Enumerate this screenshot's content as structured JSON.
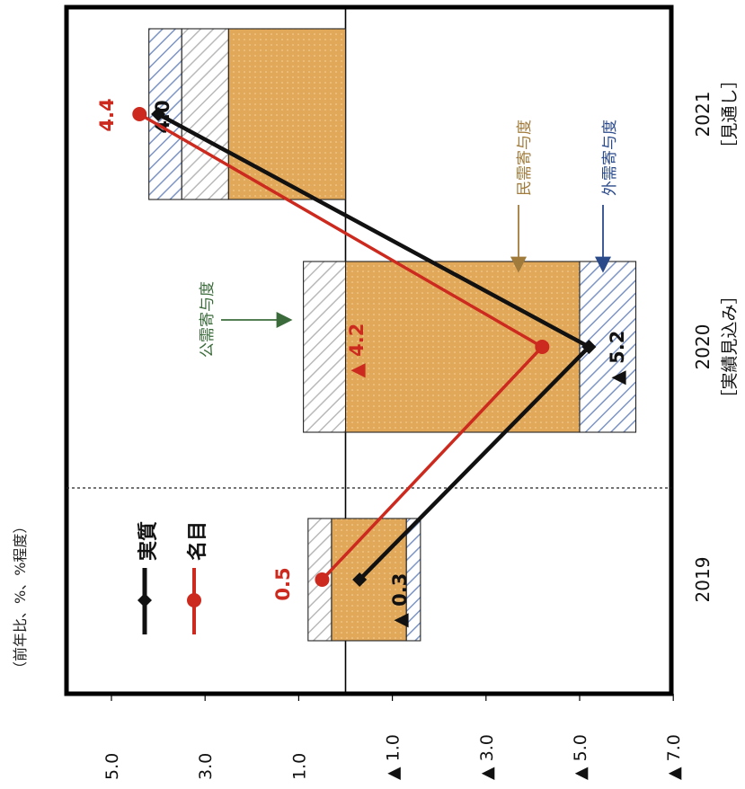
{
  "chart_data": {
    "type": "bar",
    "orientation": "rotated-90-clockwise",
    "unit_note": "（前年比、%、%程度）",
    "categories": [
      {
        "year": "2019",
        "note": ""
      },
      {
        "year": "2020",
        "note": "［実績見込み］"
      },
      {
        "year": "2021",
        "note": "［見通し］"
      }
    ],
    "value_axis": {
      "ticks": [
        5.0,
        3.0,
        1.0,
        -1.0,
        -3.0,
        -5.0,
        -7.0
      ],
      "tick_labels": [
        "5.0",
        "3.0",
        "1.0",
        "▲ 1.0",
        "▲ 3.0",
        "▲ 5.0",
        "▲ 7.0"
      ],
      "range": [
        -7.0,
        6.5
      ]
    },
    "bars": [
      {
        "category": "2019",
        "segments": [
          {
            "component": "民需寄与度",
            "from": -1.3,
            "to": 0.3
          },
          {
            "component": "外需寄与度",
            "from": -1.6,
            "to": -1.3
          },
          {
            "component": "公需寄与度",
            "from": 0.3,
            "to": 0.8
          }
        ]
      },
      {
        "category": "2020",
        "segments": [
          {
            "component": "民需寄与度",
            "from": -5.0,
            "to": 0.0
          },
          {
            "component": "外需寄与度",
            "from": -6.2,
            "to": -5.0
          },
          {
            "component": "公需寄与度",
            "from": 0.0,
            "to": 0.9
          }
        ]
      },
      {
        "category": "2021",
        "segments": [
          {
            "component": "民需寄与度",
            "from": 0.0,
            "to": 2.5
          },
          {
            "component": "公需寄与度",
            "from": 2.5,
            "to": 3.5
          },
          {
            "component": "外需寄与度",
            "from": 3.5,
            "to": 4.2
          }
        ]
      }
    ],
    "series": [
      {
        "name": "実質",
        "color": "#111111",
        "values": [
          -0.3,
          -5.2,
          4.0
        ],
        "labels": [
          "▲ 0.3",
          "▲ 5.2",
          "4.0"
        ]
      },
      {
        "name": "名目",
        "color": "#cc2a1e",
        "values": [
          0.5,
          -4.2,
          4.4
        ],
        "labels": [
          "0.5",
          "▲ 4.2",
          "4.4"
        ]
      }
    ],
    "component_labels": {
      "public": "公需寄与度",
      "private": "民需寄与度",
      "external": "外需寄与度"
    },
    "colors": {
      "private": "#e2a85a",
      "public_hatch": "#b9b9b9",
      "external_hatch": "#7d95c4",
      "real": "#111111",
      "nominal": "#cc2a1e",
      "arrow_public": "#3b6b3b",
      "arrow_private": "#a07b3c",
      "arrow_external": "#2a4a8a"
    }
  }
}
